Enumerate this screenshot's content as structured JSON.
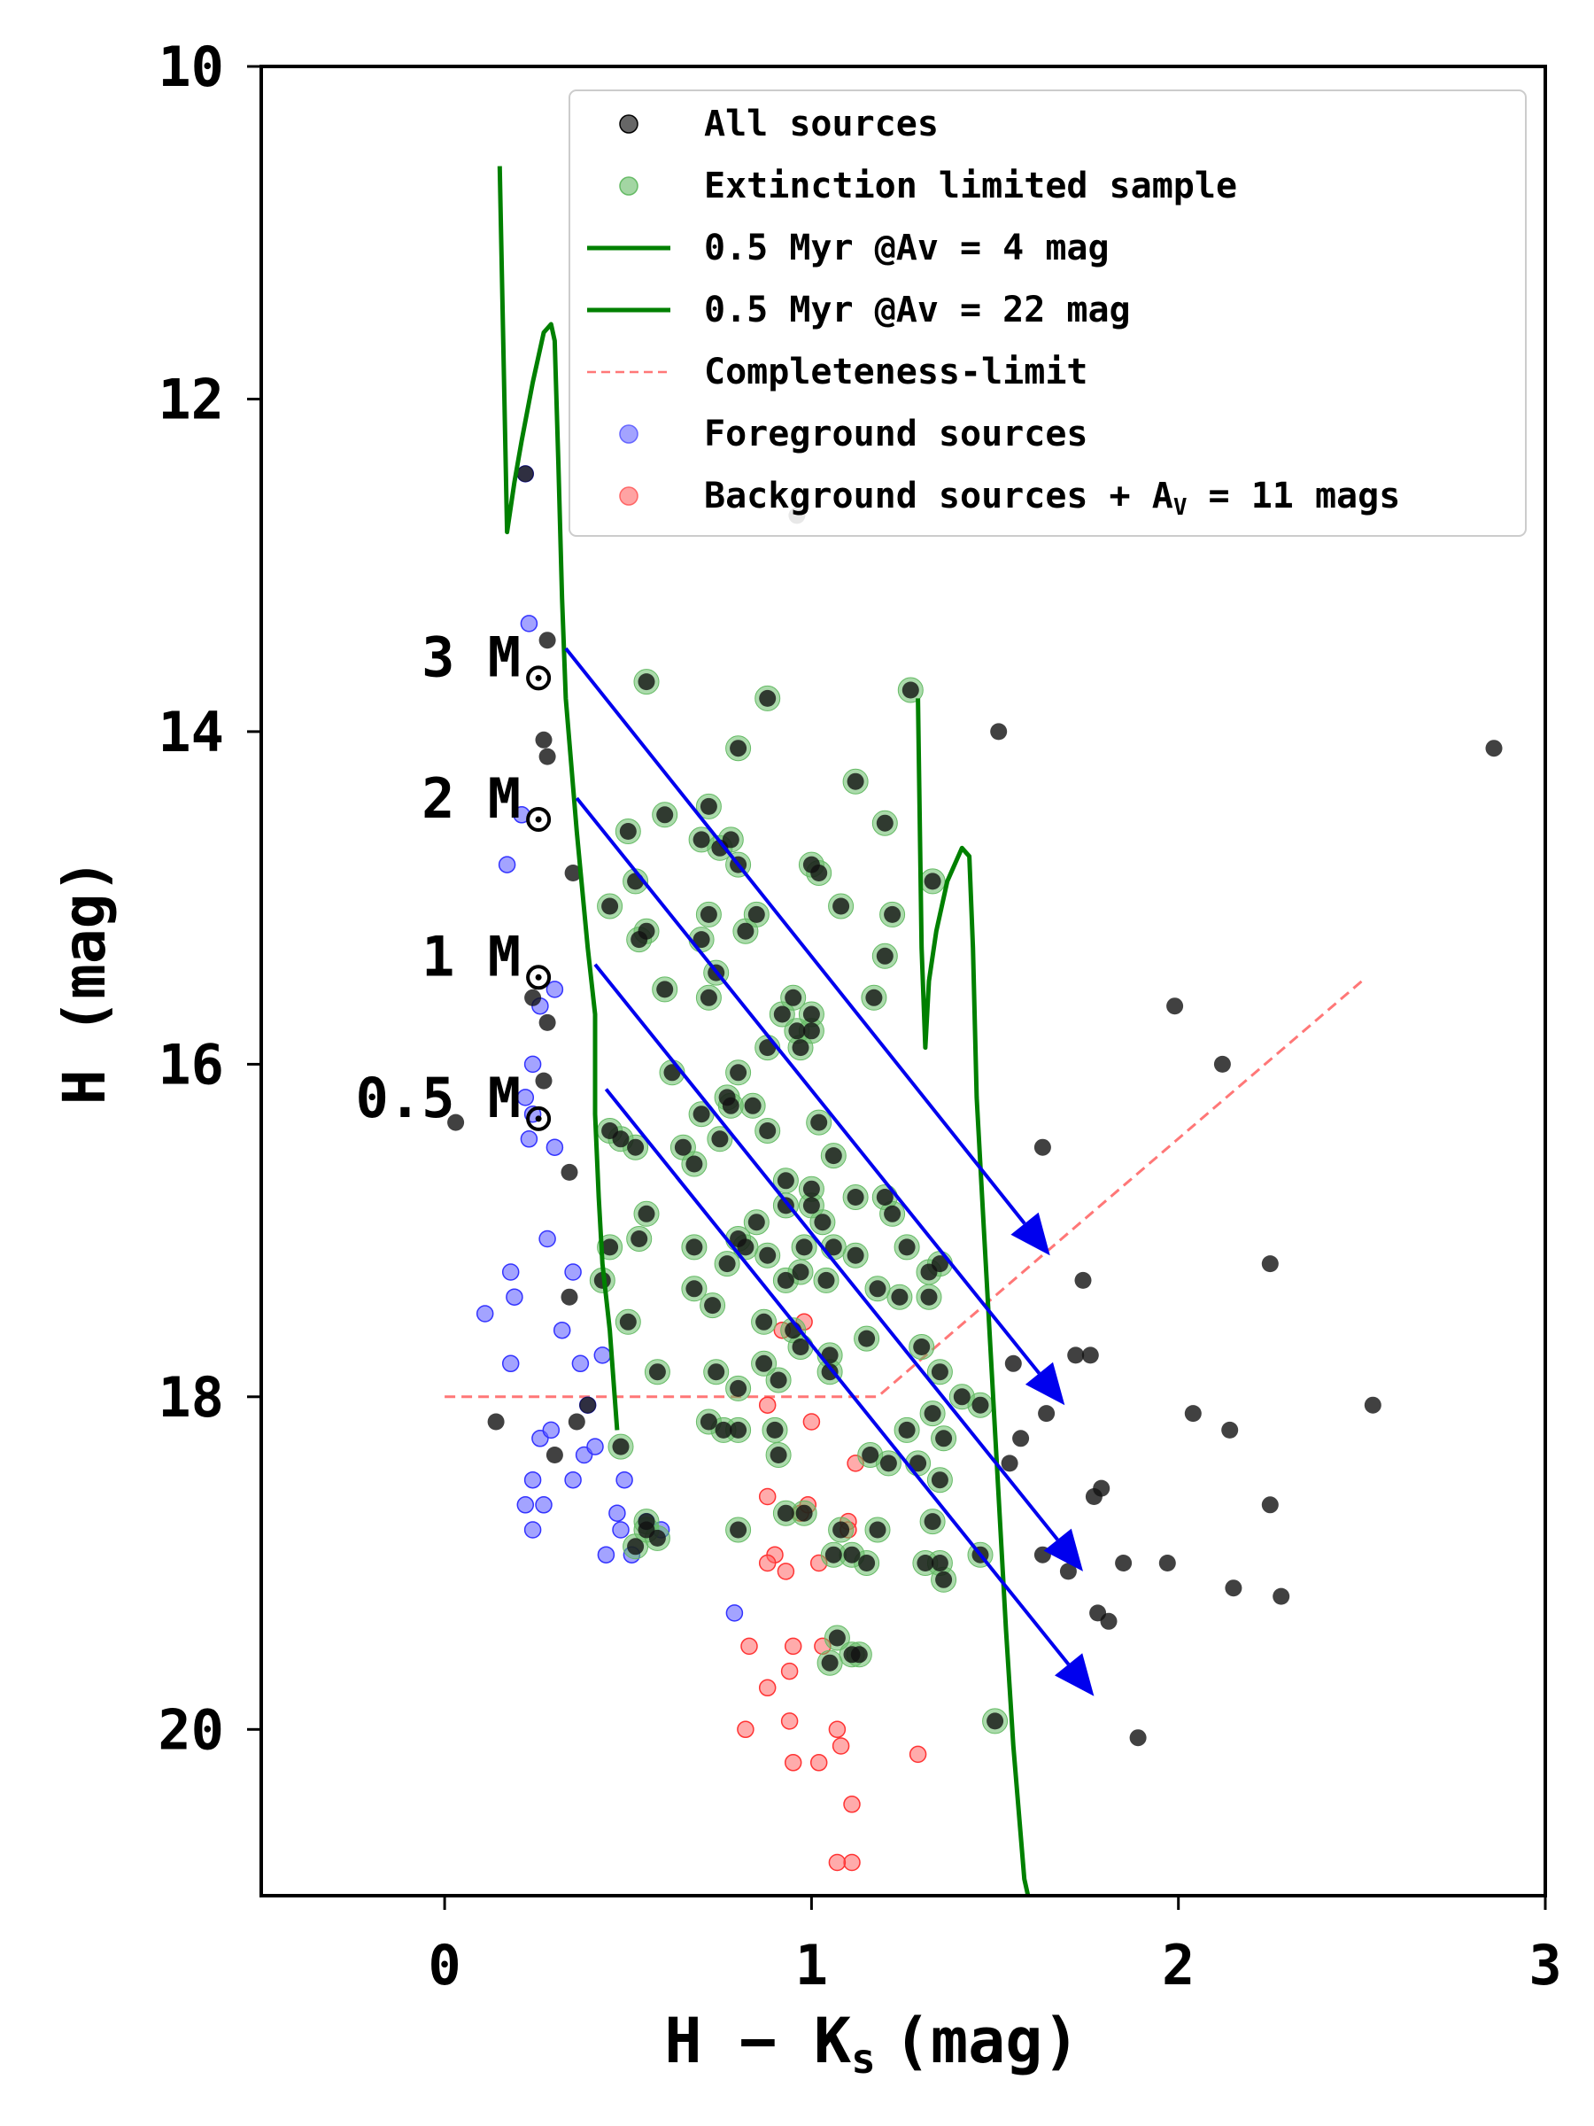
{
  "chart_data": {
    "type": "scatter",
    "xlabel": "H − K",
    "xlabel_sub": "s",
    "xlabel_unit": "(mag)",
    "ylabel": "H (mag)",
    "xlim": [
      -0.5,
      3.0
    ],
    "ylim": [
      21.0,
      10.0
    ],
    "xticks": [
      0,
      1,
      2,
      3
    ],
    "yticks": [
      10,
      12,
      14,
      16,
      18,
      20
    ],
    "legend": {
      "position": "top-right",
      "entries": [
        {
          "label": "All sources",
          "marker": "dot",
          "color": "#000000"
        },
        {
          "label": "Extinction limited sample",
          "marker": "dot",
          "color": "#66bb66"
        },
        {
          "label": "0.5 Myr @Av = 4 mag",
          "marker": "line",
          "color": "#008000"
        },
        {
          "label": "0.5 Myr @Av = 22 mag",
          "marker": "line",
          "color": "#008000"
        },
        {
          "label": "Completeness-limit",
          "marker": "dash",
          "color": "#ff7777"
        },
        {
          "label": "Foreground sources",
          "marker": "dot",
          "color": "#6666ff"
        },
        {
          "label": "Background sources + A",
          "label_sub": "V",
          "label_tail": " = 11 mags",
          "marker": "dot",
          "color": "#ff6666"
        }
      ]
    },
    "mass_labels": [
      {
        "text": "3 M",
        "x": 0.28,
        "y": 13.55
      },
      {
        "text": "2 M",
        "x": 0.28,
        "y": 14.4
      },
      {
        "text": "1 M",
        "x": 0.28,
        "y": 15.35
      },
      {
        "text": "0.5 M",
        "x": 0.28,
        "y": 16.2
      }
    ],
    "reddening_vectors": [
      {
        "mass": "3 M",
        "x0": 0.33,
        "y0": 13.5,
        "x1": 1.65,
        "y1": 17.15
      },
      {
        "mass": "2 M",
        "x0": 0.36,
        "y0": 14.4,
        "x1": 1.69,
        "y1": 18.05
      },
      {
        "mass": "1 M",
        "x0": 0.41,
        "y0": 15.4,
        "x1": 1.74,
        "y1": 19.05
      },
      {
        "mass": "0.5 M",
        "x0": 0.44,
        "y0": 16.15,
        "x1": 1.77,
        "y1": 19.8
      }
    ],
    "isochrone_av4": [
      [
        0.15,
        10.6
      ],
      [
        0.17,
        12.8
      ],
      [
        0.19,
        12.5
      ],
      [
        0.21,
        12.25
      ],
      [
        0.24,
        11.9
      ],
      [
        0.27,
        11.6
      ],
      [
        0.29,
        11.55
      ],
      [
        0.3,
        11.65
      ],
      [
        0.31,
        12.4
      ],
      [
        0.32,
        13.2
      ],
      [
        0.33,
        13.8
      ],
      [
        0.36,
        14.6
      ],
      [
        0.39,
        15.3
      ],
      [
        0.41,
        15.7
      ],
      [
        0.41,
        16.3
      ],
      [
        0.42,
        16.8
      ],
      [
        0.43,
        17.2
      ],
      [
        0.45,
        17.6
      ],
      [
        0.47,
        18.2
      ]
    ],
    "isochrone_av22": [
      [
        1.29,
        13.8
      ],
      [
        1.3,
        15.3
      ],
      [
        1.31,
        15.9
      ],
      [
        1.32,
        15.5
      ],
      [
        1.34,
        15.2
      ],
      [
        1.37,
        14.9
      ],
      [
        1.41,
        14.7
      ],
      [
        1.43,
        14.75
      ],
      [
        1.44,
        15.3
      ],
      [
        1.45,
        16.2
      ],
      [
        1.47,
        17.0
      ],
      [
        1.49,
        17.8
      ],
      [
        1.51,
        18.6
      ],
      [
        1.53,
        19.4
      ],
      [
        1.55,
        20.1
      ],
      [
        1.58,
        20.9
      ],
      [
        1.59,
        21.0
      ]
    ],
    "completeness_limit": [
      [
        0.0,
        18.0
      ],
      [
        1.18,
        18.0
      ],
      [
        2.5,
        15.5
      ]
    ],
    "series": [
      {
        "name": "All sources",
        "color": "#000000",
        "points": [
          [
            0.22,
            12.45
          ],
          [
            0.28,
            13.45
          ],
          [
            0.27,
            14.05
          ],
          [
            0.28,
            14.15
          ],
          [
            0.35,
            14.85
          ],
          [
            0.24,
            15.6
          ],
          [
            0.28,
            15.75
          ],
          [
            0.27,
            16.1
          ],
          [
            0.03,
            16.35
          ],
          [
            0.34,
            16.65
          ],
          [
            0.34,
            17.4
          ],
          [
            0.36,
            18.15
          ],
          [
            0.39,
            18.05
          ],
          [
            0.3,
            18.35
          ],
          [
            0.14,
            18.15
          ],
          [
            1.51,
            14.0
          ],
          [
            2.86,
            14.1
          ],
          [
            1.99,
            15.65
          ],
          [
            2.12,
            16.0
          ],
          [
            1.63,
            16.5
          ],
          [
            1.74,
            17.3
          ],
          [
            2.25,
            17.2
          ],
          [
            1.72,
            17.75
          ],
          [
            1.76,
            17.75
          ],
          [
            1.55,
            17.8
          ],
          [
            1.64,
            18.1
          ],
          [
            2.53,
            18.05
          ],
          [
            2.04,
            18.1
          ],
          [
            2.14,
            18.2
          ],
          [
            1.57,
            18.25
          ],
          [
            1.54,
            18.4
          ],
          [
            1.77,
            18.6
          ],
          [
            1.79,
            18.55
          ],
          [
            2.25,
            18.65
          ],
          [
            1.63,
            18.95
          ],
          [
            1.85,
            19.0
          ],
          [
            1.97,
            19.0
          ],
          [
            1.7,
            19.05
          ],
          [
            2.15,
            19.15
          ],
          [
            2.28,
            19.2
          ],
          [
            1.78,
            19.3
          ],
          [
            1.81,
            19.35
          ],
          [
            1.89,
            20.05
          ],
          [
            0.96,
            12.7
          ]
        ]
      },
      {
        "name": "Extinction limited sample",
        "color": "#66bb66",
        "points": [
          [
            0.55,
            13.7
          ],
          [
            0.88,
            13.8
          ],
          [
            1.27,
            13.75
          ],
          [
            0.8,
            14.1
          ],
          [
            1.12,
            14.3
          ],
          [
            0.6,
            14.5
          ],
          [
            0.72,
            14.45
          ],
          [
            0.5,
            14.6
          ],
          [
            0.7,
            14.65
          ],
          [
            0.75,
            14.7
          ],
          [
            0.78,
            14.65
          ],
          [
            1.0,
            14.8
          ],
          [
            1.02,
            14.85
          ],
          [
            0.8,
            14.8
          ],
          [
            1.2,
            14.55
          ],
          [
            0.52,
            14.9
          ],
          [
            0.45,
            15.05
          ],
          [
            0.55,
            15.2
          ],
          [
            0.72,
            15.1
          ],
          [
            0.85,
            15.1
          ],
          [
            1.08,
            15.05
          ],
          [
            1.22,
            15.1
          ],
          [
            1.33,
            14.9
          ],
          [
            0.53,
            15.25
          ],
          [
            0.7,
            15.25
          ],
          [
            0.82,
            15.2
          ],
          [
            1.2,
            15.35
          ],
          [
            0.6,
            15.55
          ],
          [
            0.74,
            15.45
          ],
          [
            0.72,
            15.6
          ],
          [
            0.95,
            15.6
          ],
          [
            1.0,
            15.7
          ],
          [
            0.92,
            15.7
          ],
          [
            0.96,
            15.8
          ],
          [
            1.0,
            15.8
          ],
          [
            1.17,
            15.6
          ],
          [
            0.88,
            15.9
          ],
          [
            0.97,
            15.9
          ],
          [
            0.62,
            16.05
          ],
          [
            0.8,
            16.05
          ],
          [
            0.77,
            16.2
          ],
          [
            0.78,
            16.25
          ],
          [
            0.84,
            16.25
          ],
          [
            0.7,
            16.3
          ],
          [
            0.45,
            16.4
          ],
          [
            0.48,
            16.45
          ],
          [
            0.52,
            16.5
          ],
          [
            0.65,
            16.5
          ],
          [
            0.68,
            16.6
          ],
          [
            0.75,
            16.45
          ],
          [
            0.88,
            16.4
          ],
          [
            1.02,
            16.35
          ],
          [
            1.06,
            16.55
          ],
          [
            0.93,
            16.7
          ],
          [
            1.0,
            16.75
          ],
          [
            1.0,
            16.85
          ],
          [
            1.12,
            16.8
          ],
          [
            1.2,
            16.8
          ],
          [
            0.55,
            16.9
          ],
          [
            0.85,
            16.95
          ],
          [
            0.93,
            16.85
          ],
          [
            1.03,
            16.95
          ],
          [
            1.22,
            16.9
          ],
          [
            0.45,
            17.1
          ],
          [
            0.53,
            17.05
          ],
          [
            0.68,
            17.1
          ],
          [
            0.8,
            17.05
          ],
          [
            0.77,
            17.2
          ],
          [
            0.82,
            17.1
          ],
          [
            0.88,
            17.15
          ],
          [
            0.98,
            17.1
          ],
          [
            1.06,
            17.1
          ],
          [
            1.12,
            17.15
          ],
          [
            1.26,
            17.1
          ],
          [
            1.32,
            17.25
          ],
          [
            1.35,
            17.2
          ],
          [
            0.68,
            17.35
          ],
          [
            0.73,
            17.45
          ],
          [
            0.93,
            17.3
          ],
          [
            0.97,
            17.25
          ],
          [
            1.04,
            17.3
          ],
          [
            1.18,
            17.35
          ],
          [
            1.24,
            17.4
          ],
          [
            1.32,
            17.4
          ],
          [
            0.43,
            17.3
          ],
          [
            0.5,
            17.55
          ],
          [
            0.87,
            17.55
          ],
          [
            0.95,
            17.6
          ],
          [
            0.97,
            17.7
          ],
          [
            1.05,
            17.75
          ],
          [
            1.05,
            17.85
          ],
          [
            1.15,
            17.65
          ],
          [
            1.3,
            17.7
          ],
          [
            1.35,
            17.85
          ],
          [
            0.87,
            17.8
          ],
          [
            0.58,
            17.85
          ],
          [
            0.74,
            17.85
          ],
          [
            0.8,
            17.95
          ],
          [
            0.91,
            17.9
          ],
          [
            1.41,
            18.0
          ],
          [
            1.46,
            18.05
          ],
          [
            1.33,
            18.1
          ],
          [
            0.72,
            18.15
          ],
          [
            0.76,
            18.2
          ],
          [
            1.26,
            18.2
          ],
          [
            1.36,
            18.25
          ],
          [
            0.8,
            18.2
          ],
          [
            0.9,
            18.2
          ],
          [
            0.48,
            18.3
          ],
          [
            0.91,
            18.35
          ],
          [
            1.16,
            18.35
          ],
          [
            1.29,
            18.4
          ],
          [
            1.21,
            18.4
          ],
          [
            1.35,
            18.5
          ],
          [
            0.55,
            18.75
          ],
          [
            0.55,
            18.8
          ],
          [
            0.8,
            18.8
          ],
          [
            0.93,
            18.7
          ],
          [
            0.98,
            18.7
          ],
          [
            1.08,
            18.8
          ],
          [
            1.18,
            18.8
          ],
          [
            1.33,
            18.75
          ],
          [
            0.52,
            18.9
          ],
          [
            0.58,
            18.85
          ],
          [
            1.06,
            18.95
          ],
          [
            1.11,
            18.95
          ],
          [
            1.15,
            19.0
          ],
          [
            1.31,
            19.0
          ],
          [
            1.35,
            19.0
          ],
          [
            1.36,
            19.1
          ],
          [
            1.46,
            18.95
          ],
          [
            1.07,
            19.45
          ],
          [
            1.11,
            19.55
          ],
          [
            1.05,
            19.6
          ],
          [
            1.13,
            19.55
          ],
          [
            1.5,
            19.95
          ]
        ]
      },
      {
        "name": "Foreground sources",
        "color": "#6666ff",
        "points": [
          [
            0.22,
            12.45
          ],
          [
            0.23,
            13.35
          ],
          [
            0.21,
            14.5
          ],
          [
            0.17,
            14.8
          ],
          [
            0.3,
            15.55
          ],
          [
            0.26,
            15.65
          ],
          [
            0.24,
            16.0
          ],
          [
            0.22,
            16.2
          ],
          [
            0.24,
            16.3
          ],
          [
            0.23,
            16.45
          ],
          [
            0.3,
            16.5
          ],
          [
            0.28,
            17.05
          ],
          [
            0.18,
            17.25
          ],
          [
            0.35,
            17.25
          ],
          [
            0.19,
            17.4
          ],
          [
            0.11,
            17.5
          ],
          [
            0.32,
            17.6
          ],
          [
            0.18,
            17.8
          ],
          [
            0.37,
            17.8
          ],
          [
            0.43,
            17.75
          ],
          [
            0.39,
            18.05
          ],
          [
            0.26,
            18.25
          ],
          [
            0.38,
            18.35
          ],
          [
            0.29,
            18.2
          ],
          [
            0.41,
            18.3
          ],
          [
            0.49,
            18.5
          ],
          [
            0.24,
            18.5
          ],
          [
            0.35,
            18.5
          ],
          [
            0.22,
            18.65
          ],
          [
            0.27,
            18.65
          ],
          [
            0.24,
            18.8
          ],
          [
            0.47,
            18.7
          ],
          [
            0.55,
            18.75
          ],
          [
            0.48,
            18.8
          ],
          [
            0.44,
            18.95
          ],
          [
            0.59,
            18.8
          ],
          [
            0.51,
            18.95
          ],
          [
            0.79,
            19.3
          ]
        ]
      },
      {
        "name": "Background sources + Av = 11 mags",
        "color": "#ff6666",
        "points": [
          [
            0.98,
            17.55
          ],
          [
            0.92,
            17.6
          ],
          [
            0.88,
            18.05
          ],
          [
            1.0,
            18.15
          ],
          [
            1.12,
            18.4
          ],
          [
            0.88,
            18.6
          ],
          [
            0.97,
            18.7
          ],
          [
            0.99,
            18.65
          ],
          [
            1.1,
            18.75
          ],
          [
            1.1,
            18.8
          ],
          [
            0.9,
            18.95
          ],
          [
            0.88,
            19.0
          ],
          [
            0.93,
            19.05
          ],
          [
            1.02,
            19.0
          ],
          [
            0.83,
            19.5
          ],
          [
            0.95,
            19.5
          ],
          [
            1.03,
            19.5
          ],
          [
            0.94,
            19.65
          ],
          [
            0.88,
            19.75
          ],
          [
            0.82,
            20.0
          ],
          [
            0.94,
            19.95
          ],
          [
            1.07,
            20.0
          ],
          [
            1.08,
            20.1
          ],
          [
            1.02,
            20.2
          ],
          [
            0.95,
            20.2
          ],
          [
            1.29,
            20.15
          ],
          [
            1.11,
            20.45
          ],
          [
            1.11,
            20.8
          ],
          [
            1.07,
            20.8
          ]
        ]
      }
    ]
  }
}
